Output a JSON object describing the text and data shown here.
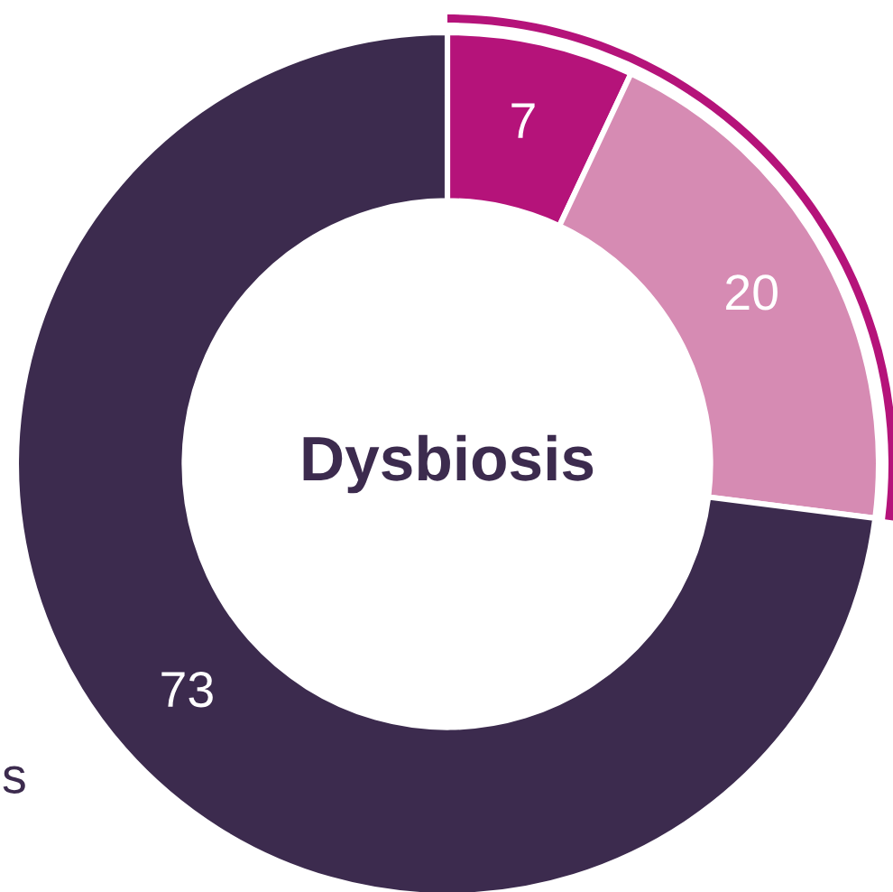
{
  "chart_data": {
    "type": "donut",
    "title": "Dysbiosis",
    "categories": [
      null,
      null,
      null
    ],
    "values": [
      7,
      20,
      73
    ],
    "colors": [
      "#b5137a",
      "#d68bb3",
      "#3c2b4e"
    ],
    "data_labels": true,
    "annotations": [
      "s"
    ]
  }
}
